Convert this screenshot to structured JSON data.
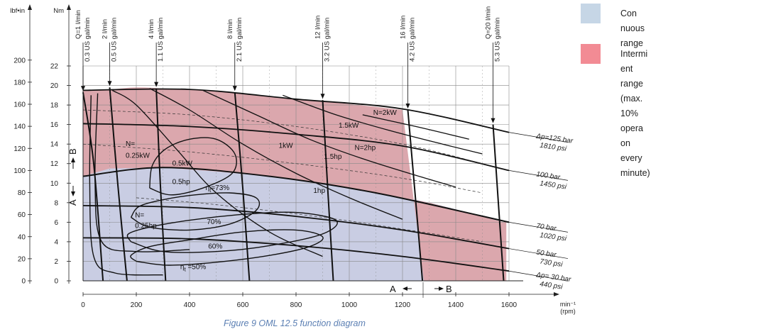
{
  "legend": {
    "continuous": {
      "label": "Con   nuous range",
      "color": "#c6d6e6"
    },
    "intermittent": {
      "label": "Intermi   ent range (max. 10%\nopera   on every minute)",
      "color": "#f28b94"
    }
  },
  "caption": "Figure 9 OML 12.5 function diagram",
  "colors": {
    "continuous_fill": "#c9cde3",
    "intermittent_fill": "#dba7ad",
    "curve": "#111111",
    "grid": "#888888"
  },
  "chart_data": {
    "type": "area",
    "xlabel": "min⁻¹\n(rpm)",
    "ylabel_nm": "Nm",
    "ylabel_lbfin": "lbf•in",
    "xlim": [
      0,
      1600
    ],
    "ylim_nm": [
      0,
      22
    ],
    "x_ticks": [
      0,
      200,
      400,
      600,
      800,
      1000,
      1200,
      1400,
      1600
    ],
    "y_ticks_nm": [
      0,
      2,
      4,
      6,
      8,
      10,
      12,
      14,
      16,
      18,
      20,
      22
    ],
    "y_ticks_lbfin": [
      0,
      20,
      40,
      60,
      80,
      100,
      120,
      140,
      160,
      180,
      200
    ],
    "continuous_boundary": [
      [
        0,
        10.7
      ],
      [
        100,
        11.5
      ],
      [
        300,
        11.6
      ],
      [
        500,
        11.2
      ],
      [
        700,
        10.7
      ],
      [
        900,
        9.9
      ],
      [
        1100,
        9.0
      ],
      [
        1300,
        8.0
      ],
      [
        1580,
        6.0
      ]
    ],
    "intermittent_boundary": [
      [
        0,
        19.5
      ],
      [
        100,
        19.6
      ],
      [
        200,
        19.8
      ],
      [
        300,
        19.7
      ],
      [
        400,
        19.6
      ],
      [
        500,
        19.4
      ],
      [
        600,
        19.2
      ],
      [
        800,
        18.6
      ],
      [
        1000,
        18.1
      ],
      [
        1200,
        17.5
      ]
    ],
    "pressure_lines": [
      {
        "bar": "Δp=125 bar",
        "psi": "1810 psi",
        "points": [
          [
            0,
            19.5
          ],
          [
            400,
            19.6
          ],
          [
            800,
            18.6
          ],
          [
            1200,
            17.6
          ],
          [
            1600,
            15.2
          ]
        ]
      },
      {
        "bar": "100 bar",
        "psi": "1450 psi",
        "points": [
          [
            0,
            16.1
          ],
          [
            400,
            15.8
          ],
          [
            800,
            15.0
          ],
          [
            1200,
            13.8
          ],
          [
            1600,
            11.3
          ]
        ]
      },
      {
        "bar": "70 bar",
        "psi": "1020 psi",
        "points": [
          [
            0,
            10.7
          ],
          [
            300,
            11.6
          ],
          [
            700,
            10.7
          ],
          [
            1100,
            9.0
          ],
          [
            1600,
            6.0
          ]
        ]
      },
      {
        "bar": "50 bar",
        "psi": "730 psi",
        "points": [
          [
            0,
            7.7
          ],
          [
            400,
            7.5
          ],
          [
            800,
            6.6
          ],
          [
            1200,
            5.2
          ],
          [
            1600,
            3.3
          ]
        ]
      },
      {
        "bar": "Δp= 30 bar",
        "psi": "440 psi",
        "points": [
          [
            0,
            4.4
          ],
          [
            400,
            4.3
          ],
          [
            800,
            3.6
          ],
          [
            1200,
            2.5
          ],
          [
            1600,
            1.0
          ]
        ]
      }
    ],
    "flow_lines": [
      {
        "lpm": "Q=1 l/min",
        "gal": "0.3 US gal/min",
        "points": [
          [
            0,
            19.3
          ],
          [
            40,
            12.0
          ],
          [
            75,
            0
          ]
        ]
      },
      {
        "lpm": "2 l/min",
        "gal": "0.5 US gal/min",
        "points": [
          [
            100,
            19.8
          ],
          [
            130,
            10.0
          ],
          [
            165,
            0
          ]
        ]
      },
      {
        "lpm": "4 l/min",
        "gal": "1.1 US gal/min",
        "points": [
          [
            275,
            19.7
          ],
          [
            290,
            10.0
          ],
          [
            310,
            0
          ]
        ]
      },
      {
        "lpm": "8 l/min",
        "gal": "2.1 US gal/min",
        "points": [
          [
            570,
            19.3
          ],
          [
            600,
            9.5
          ],
          [
            625,
            0
          ]
        ]
      },
      {
        "lpm": "12 l/min",
        "gal": "3.2 US gal/min",
        "points": [
          [
            900,
            18.5
          ],
          [
            920,
            9.0
          ],
          [
            940,
            0
          ]
        ]
      },
      {
        "lpm": "16 l/min",
        "gal": "4.2 US gal/min",
        "points": [
          [
            1220,
            17.5
          ],
          [
            1250,
            8.0
          ],
          [
            1275,
            0
          ]
        ]
      },
      {
        "lpm": "Q=20 l/min",
        "gal": "5.3 US gal/min",
        "points": [
          [
            1540,
            16.0
          ],
          [
            1560,
            8.0
          ],
          [
            1580,
            0
          ]
        ]
      }
    ],
    "power_labels": [
      {
        "text": "N=2kW",
        "x": 1090,
        "y": 17.0
      },
      {
        "text": "1.5kW",
        "x": 960,
        "y": 15.7
      },
      {
        "text": "N=2hp",
        "x": 1020,
        "y": 13.4
      },
      {
        "text": "1kW",
        "x": 735,
        "y": 13.6
      },
      {
        "text": "1.5hp",
        "x": 905,
        "y": 12.5
      },
      {
        "text": "N=",
        "x": 160,
        "y": 13.8
      },
      {
        "text": "0.25kW",
        "x": 160,
        "y": 12.6
      },
      {
        "text": "0.5kW",
        "x": 335,
        "y": 11.8
      },
      {
        "text": "0.5hp",
        "x": 335,
        "y": 9.9
      },
      {
        "text": "1hp",
        "x": 865,
        "y": 9.0
      },
      {
        "text": "N=",
        "x": 195,
        "y": 6.5
      },
      {
        "text": "0.25hp",
        "x": 195,
        "y": 5.4
      },
      {
        "text": "70%",
        "x": 465,
        "y": 5.8
      },
      {
        "text": "60%",
        "x": 470,
        "y": 3.3
      }
    ],
    "efficiency_labels": [
      {
        "text": "η",
        "sub": "t",
        "rest": "=73%",
        "x": 460,
        "y": 9.3
      },
      {
        "text": "η",
        "sub": "t",
        "rest": " =50%",
        "x": 365,
        "y": 1.2
      }
    ],
    "region_markers": {
      "A": "A",
      "B": "B"
    }
  }
}
